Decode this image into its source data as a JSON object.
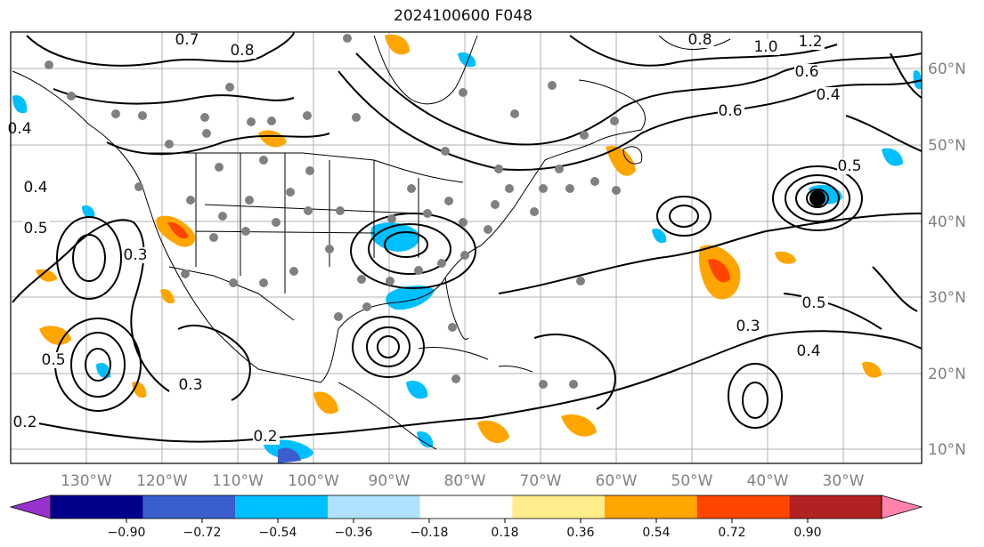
{
  "title": "2024100600 F048",
  "lon_labels": [
    "130°W",
    "120°W",
    "110°W",
    "100°W",
    "90°W",
    "80°W",
    "70°W",
    "60°W",
    "50°W",
    "40°W",
    "30°W"
  ],
  "lat_labels": [
    "60°N",
    "50°N",
    "40°N",
    "30°N",
    "20°N",
    "10°N"
  ],
  "colorbar": {
    "colors": [
      "#9932cc",
      "#00008b",
      "#3a5fcd",
      "#00bfff",
      "#b0e2ff",
      "#ffffff",
      "#ffec8b",
      "#ffa500",
      "#ff4500",
      "#b22222",
      "#ff82ab"
    ],
    "ticks": [
      "−0.90",
      "−0.72",
      "−0.54",
      "−0.36",
      "−0.18",
      "0.18",
      "0.36",
      "0.54",
      "0.72",
      "0.90"
    ]
  },
  "contour_labels": [
    "0.2",
    "0.2",
    "0.4",
    "0.4",
    "0.5",
    "0.5",
    "0.3",
    "0.3",
    "0.6",
    "0.6",
    "0.7",
    "0.8",
    "0.8",
    "1.0",
    "1.2",
    "0.4",
    "0.5",
    "0.3",
    "0.4",
    "0.5"
  ],
  "colors": {
    "contour": "#000000",
    "grid": "#b0b0b0",
    "land": "#000000",
    "station": "#808080"
  }
}
